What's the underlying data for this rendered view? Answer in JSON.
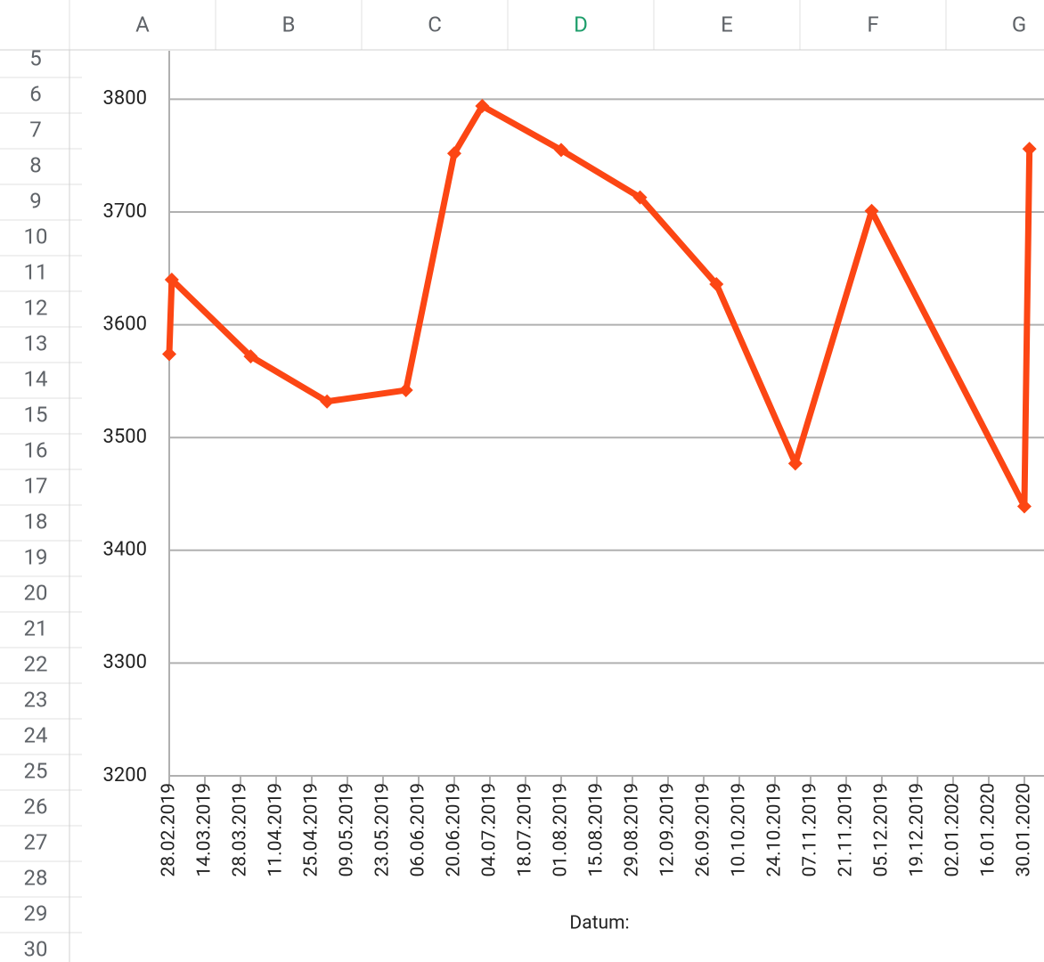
{
  "spreadsheet": {
    "columns": [
      {
        "label": "A",
        "color": "#5f6368"
      },
      {
        "label": "B",
        "color": "#5f6368"
      },
      {
        "label": "C",
        "color": "#5f6368"
      },
      {
        "label": "D",
        "color": "#1e9e6b"
      },
      {
        "label": "E",
        "color": "#5f6368"
      },
      {
        "label": "F",
        "color": "#5f6368"
      },
      {
        "label": "G",
        "color": "#5f6368"
      }
    ],
    "rows": [
      5,
      6,
      7,
      8,
      9,
      10,
      11,
      12,
      13,
      14,
      15,
      16,
      17,
      18,
      19,
      20,
      21,
      22,
      23,
      24,
      25,
      26,
      27,
      28,
      29,
      30
    ]
  },
  "chart_data": {
    "type": "line",
    "x_label": "Datum:",
    "x": [
      "28.02.2019",
      "01.03.2019",
      "01.04.2019",
      "01.05.2019",
      "01.06.2019",
      "20.06.2019",
      "01.07.2019",
      "01.08.2019",
      "01.09.2019",
      "01.10.2019",
      "01.11.2019",
      "01.12.2019",
      "30.01.2020",
      "01.02.2020"
    ],
    "values": [
      3574,
      3640,
      3572,
      3532,
      3542,
      3752,
      3794,
      3755,
      3713,
      3636,
      3477,
      3701,
      3439,
      3756
    ],
    "color": "#fc4614",
    "xlim": [
      "28.02.2019",
      "01.02.2020"
    ],
    "xticks": [
      "28.02.2019",
      "14.03.2019",
      "28.03.2019",
      "11.04.2019",
      "25.04.2019",
      "09.05.2019",
      "23.05.2019",
      "06.06.2019",
      "20.06.2019",
      "04.07.2019",
      "18.07.2019",
      "01.08.2019",
      "15.08.2019",
      "29.08.2019",
      "12.09.2019",
      "26.09.2019",
      "10.10.2019",
      "24.10.2019",
      "07.11.2019",
      "21.11.2019",
      "05.12.2019",
      "19.12.2019",
      "02.01.2020",
      "16.01.2020",
      "30.01.2020"
    ],
    "ylim": [
      3200,
      3843
    ],
    "yticks": [
      3200,
      3300,
      3400,
      3500,
      3600,
      3700,
      3800
    ],
    "grid": true
  }
}
